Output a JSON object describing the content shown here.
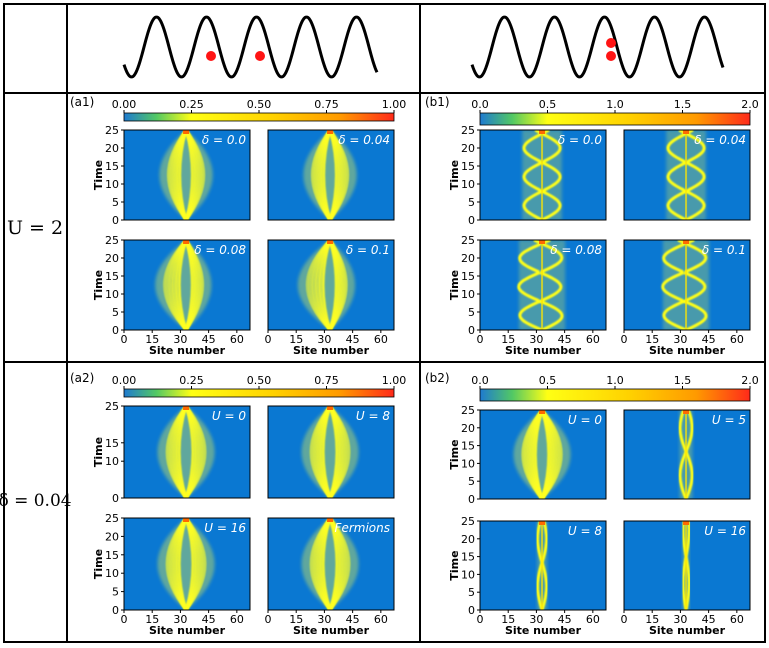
{
  "figure": {
    "row_headers": [
      "U = 2",
      "δ = 0.04"
    ],
    "colors": {
      "background_field": "#0a78d2",
      "particle": "#ff1414",
      "grid_line": "#000000",
      "colormap": [
        "#1e7ad0",
        "#52c864",
        "#ffff14",
        "#ffd200",
        "#ff9a00",
        "#ff2a1a"
      ]
    }
  },
  "chart_data": [
    {
      "id": "a1",
      "type": "heatmap",
      "panel_label": "(a1)",
      "colorbar_ticks": [
        "0.00",
        "0.25",
        "0.50",
        "0.75",
        "1.00"
      ],
      "colorbar_range": [
        0,
        1
      ],
      "xlabel": "Site number",
      "ylabel": "Time",
      "x_ticks": [
        "0",
        "15",
        "30",
        "45",
        "60"
      ],
      "y_ticks": [
        "0",
        "5",
        "10",
        "15",
        "20",
        "25"
      ],
      "xlim": [
        0,
        67
      ],
      "ylim": [
        0,
        25
      ],
      "center_site": 33,
      "subplots": [
        {
          "label": "δ = 0.0",
          "pattern": "light_cone",
          "rows": 5,
          "half_width": 14,
          "skew": 0
        },
        {
          "label": "δ = 0.04",
          "pattern": "light_cone",
          "rows": 5,
          "half_width": 14,
          "skew": 0
        },
        {
          "label": "δ = 0.08",
          "pattern": "light_cone",
          "rows": 5,
          "half_width": 14,
          "skew": 3
        },
        {
          "label": "δ = 0.1",
          "pattern": "light_cone",
          "rows": 5,
          "half_width": 14,
          "skew": 4
        }
      ]
    },
    {
      "id": "b1",
      "type": "heatmap",
      "panel_label": "(b1)",
      "colorbar_ticks": [
        "0.0",
        "0.5",
        "1.0",
        "1.5",
        "2.0"
      ],
      "colorbar_range": [
        0,
        2
      ],
      "xlabel": "Site number",
      "ylabel": "Time",
      "x_ticks": [
        "0",
        "15",
        "30",
        "45",
        "60"
      ],
      "y_ticks": [
        "0",
        "5",
        "10",
        "15",
        "20",
        "25"
      ],
      "xlim": [
        0,
        67
      ],
      "ylim": [
        0,
        25
      ],
      "center_site": 33,
      "subplots": [
        {
          "label": "δ = 0.0",
          "pattern": "bound_pair",
          "rows": 5,
          "half_width": 6,
          "skew": 0
        },
        {
          "label": "δ = 0.04",
          "pattern": "bound_pair",
          "rows": 5,
          "half_width": 6,
          "skew": 0
        },
        {
          "label": "δ = 0.08",
          "pattern": "bound_pair",
          "rows": 5,
          "half_width": 7,
          "skew": 3
        },
        {
          "label": "δ = 0.1",
          "pattern": "bound_pair",
          "rows": 5,
          "half_width": 7,
          "skew": 3
        }
      ]
    },
    {
      "id": "a2",
      "type": "heatmap",
      "panel_label": "(a2)",
      "colorbar_ticks": [
        "0.00",
        "0.25",
        "0.50",
        "0.75",
        "1.00"
      ],
      "colorbar_range": [
        0,
        1
      ],
      "xlabel": "Site number",
      "ylabel": "Time",
      "x_ticks": [
        "0",
        "15",
        "30",
        "45",
        "60"
      ],
      "y_ticks": [
        "0",
        "5",
        "10",
        "15",
        "20",
        "25"
      ],
      "y_ticks_upper": [
        "0",
        "10",
        "15",
        "25"
      ],
      "xlim": [
        0,
        67
      ],
      "ylim": [
        0,
        25
      ],
      "center_site": 33,
      "subplots": [
        {
          "label": "U = 0",
          "pattern": "light_cone",
          "rows": 5,
          "half_width": 15,
          "skew": 0
        },
        {
          "label": "U = 8",
          "pattern": "light_cone",
          "rows": 5,
          "half_width": 15,
          "skew": 0
        },
        {
          "label": "U = 16",
          "pattern": "light_cone",
          "rows": 5,
          "half_width": 15,
          "skew": 0
        },
        {
          "label": "Fermions",
          "pattern": "light_cone",
          "rows": 5,
          "half_width": 15,
          "skew": 0
        }
      ]
    },
    {
      "id": "b2",
      "type": "heatmap",
      "panel_label": "(b2)",
      "colorbar_ticks": [
        "0.0",
        "0.5",
        "1.0",
        "1.5",
        "2.0"
      ],
      "colorbar_range": [
        0,
        2
      ],
      "xlabel": "Site number",
      "ylabel": "Time",
      "x_ticks": [
        "0",
        "15",
        "30",
        "45",
        "60"
      ],
      "y_ticks": [
        "0",
        "5",
        "10",
        "15",
        "20",
        "25"
      ],
      "xlim": [
        0,
        67
      ],
      "ylim": [
        0,
        25
      ],
      "center_site": 33,
      "subplots": [
        {
          "label": "U = 0",
          "pattern": "light_cone",
          "rows": 6,
          "half_width": 15,
          "skew": 0
        },
        {
          "label": "U = 5",
          "pattern": "bound_pair",
          "rows": 3,
          "half_width": 2,
          "skew": 0
        },
        {
          "label": "U = 8",
          "pattern": "bound_pair",
          "rows": 3,
          "half_width": 1.5,
          "skew": 0
        },
        {
          "label": "U = 16",
          "pattern": "bound_pair",
          "rows": 2,
          "half_width": 1,
          "skew": 0
        }
      ]
    }
  ]
}
